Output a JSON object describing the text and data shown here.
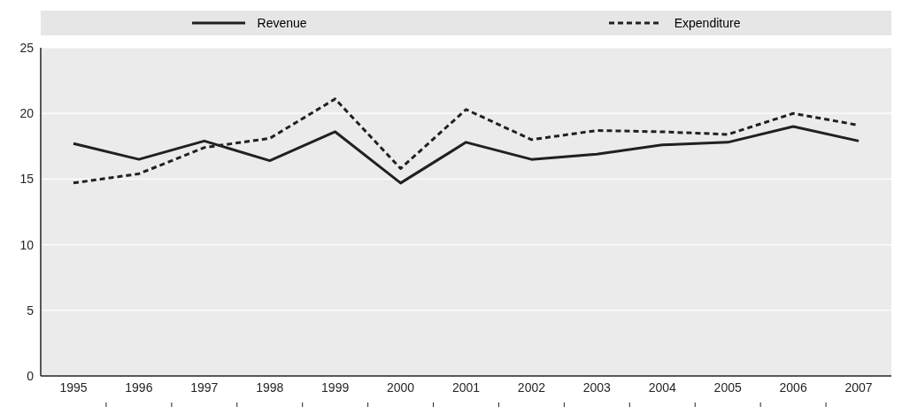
{
  "chart_data": {
    "type": "line",
    "categories": [
      "1995",
      "1996",
      "1997",
      "1998",
      "1999",
      "2000",
      "2001",
      "2002",
      "2003",
      "2004",
      "2005",
      "2006",
      "2007"
    ],
    "series": [
      {
        "name": "Revenue",
        "color": "#231f20",
        "line_style": "solid",
        "values": [
          17.7,
          16.5,
          17.9,
          16.4,
          18.6,
          14.7,
          17.8,
          16.5,
          16.9,
          17.6,
          17.8,
          19.0,
          17.9
        ]
      },
      {
        "name": "Expenditure",
        "color": "#231f20",
        "line_style": "dashed",
        "values": [
          14.7,
          15.4,
          17.4,
          18.1,
          21.1,
          15.8,
          20.3,
          18.0,
          18.7,
          18.6,
          18.4,
          20.0,
          19.1
        ]
      }
    ],
    "ylim": [
      0,
      25
    ],
    "yticks": [
      0,
      5,
      10,
      15,
      20,
      25
    ],
    "grid": true,
    "legend": "top",
    "marker": "none"
  }
}
